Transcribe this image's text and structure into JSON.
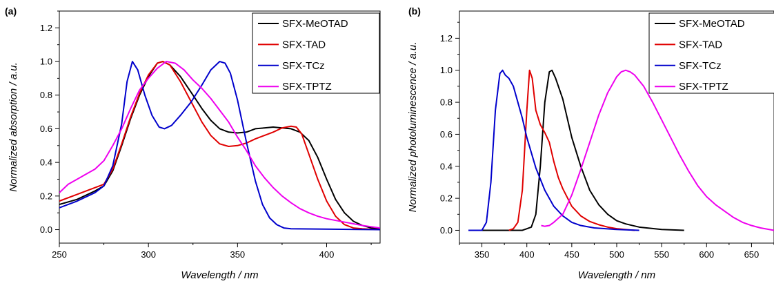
{
  "chart_data": [
    {
      "type": "line",
      "panel_label": "(a)",
      "xlabel": "Wavelength / nm",
      "ylabel": "Normalized absorption / a.u.",
      "xlim": [
        250,
        430
      ],
      "ylim": [
        -0.08,
        1.3
      ],
      "xticks": [
        250,
        300,
        350,
        400
      ],
      "yticks": [
        0.0,
        0.2,
        0.4,
        0.6,
        0.8,
        1.0,
        1.2
      ],
      "legend_position": "top-right",
      "grid": false,
      "series": [
        {
          "name": "SFX-MeOTAD",
          "color": "#000000",
          "points": [
            [
              250,
              0.15
            ],
            [
              260,
              0.18
            ],
            [
              270,
              0.23
            ],
            [
              275,
              0.26
            ],
            [
              280,
              0.35
            ],
            [
              285,
              0.5
            ],
            [
              290,
              0.66
            ],
            [
              295,
              0.8
            ],
            [
              300,
              0.91
            ],
            [
              305,
              0.99
            ],
            [
              308,
              1.0
            ],
            [
              312,
              0.98
            ],
            [
              318,
              0.91
            ],
            [
              325,
              0.8
            ],
            [
              330,
              0.72
            ],
            [
              335,
              0.65
            ],
            [
              340,
              0.6
            ],
            [
              345,
              0.58
            ],
            [
              350,
              0.575
            ],
            [
              355,
              0.58
            ],
            [
              360,
              0.6
            ],
            [
              365,
              0.605
            ],
            [
              370,
              0.61
            ],
            [
              375,
              0.605
            ],
            [
              380,
              0.6
            ],
            [
              385,
              0.58
            ],
            [
              390,
              0.53
            ],
            [
              395,
              0.43
            ],
            [
              400,
              0.3
            ],
            [
              405,
              0.18
            ],
            [
              410,
              0.1
            ],
            [
              415,
              0.05
            ],
            [
              420,
              0.025
            ],
            [
              425,
              0.01
            ],
            [
              430,
              0.005
            ]
          ]
        },
        {
          "name": "SFX-TAD",
          "color": "#e00000",
          "points": [
            [
              250,
              0.17
            ],
            [
              260,
              0.21
            ],
            [
              270,
              0.25
            ],
            [
              275,
              0.27
            ],
            [
              280,
              0.36
            ],
            [
              285,
              0.51
            ],
            [
              290,
              0.67
            ],
            [
              295,
              0.81
            ],
            [
              300,
              0.92
            ],
            [
              305,
              0.99
            ],
            [
              308,
              1.0
            ],
            [
              312,
              0.98
            ],
            [
              318,
              0.88
            ],
            [
              325,
              0.74
            ],
            [
              330,
              0.64
            ],
            [
              335,
              0.56
            ],
            [
              340,
              0.51
            ],
            [
              345,
              0.495
            ],
            [
              350,
              0.5
            ],
            [
              355,
              0.515
            ],
            [
              360,
              0.54
            ],
            [
              365,
              0.56
            ],
            [
              370,
              0.58
            ],
            [
              375,
              0.605
            ],
            [
              380,
              0.615
            ],
            [
              383,
              0.61
            ],
            [
              386,
              0.57
            ],
            [
              390,
              0.45
            ],
            [
              395,
              0.3
            ],
            [
              400,
              0.17
            ],
            [
              405,
              0.08
            ],
            [
              410,
              0.03
            ],
            [
              415,
              0.01
            ],
            [
              420,
              0.005
            ],
            [
              430,
              0.0
            ]
          ]
        },
        {
          "name": "SFX-TCz",
          "color": "#0000cc",
          "points": [
            [
              250,
              0.13
            ],
            [
              260,
              0.17
            ],
            [
              270,
              0.22
            ],
            [
              275,
              0.26
            ],
            [
              280,
              0.38
            ],
            [
              285,
              0.63
            ],
            [
              288,
              0.88
            ],
            [
              291,
              1.0
            ],
            [
              294,
              0.95
            ],
            [
              298,
              0.8
            ],
            [
              302,
              0.68
            ],
            [
              306,
              0.61
            ],
            [
              309,
              0.6
            ],
            [
              313,
              0.62
            ],
            [
              318,
              0.68
            ],
            [
              324,
              0.76
            ],
            [
              330,
              0.86
            ],
            [
              335,
              0.95
            ],
            [
              340,
              1.0
            ],
            [
              343,
              0.99
            ],
            [
              346,
              0.93
            ],
            [
              350,
              0.77
            ],
            [
              355,
              0.52
            ],
            [
              360,
              0.29
            ],
            [
              364,
              0.15
            ],
            [
              368,
              0.07
            ],
            [
              372,
              0.03
            ],
            [
              376,
              0.01
            ],
            [
              380,
              0.005
            ],
            [
              430,
              0.0
            ]
          ]
        },
        {
          "name": "SFX-TPTZ",
          "color": "#ee00ee",
          "points": [
            [
              250,
              0.22
            ],
            [
              255,
              0.27
            ],
            [
              260,
              0.3
            ],
            [
              265,
              0.33
            ],
            [
              270,
              0.36
            ],
            [
              275,
              0.41
            ],
            [
              280,
              0.5
            ],
            [
              285,
              0.6
            ],
            [
              290,
              0.72
            ],
            [
              295,
              0.83
            ],
            [
              300,
              0.9
            ],
            [
              305,
              0.96
            ],
            [
              310,
              1.0
            ],
            [
              315,
              0.99
            ],
            [
              320,
              0.95
            ],
            [
              325,
              0.89
            ],
            [
              330,
              0.84
            ],
            [
              335,
              0.78
            ],
            [
              340,
              0.71
            ],
            [
              345,
              0.64
            ],
            [
              350,
              0.55
            ],
            [
              355,
              0.47
            ],
            [
              360,
              0.38
            ],
            [
              365,
              0.31
            ],
            [
              370,
              0.25
            ],
            [
              375,
              0.2
            ],
            [
              380,
              0.16
            ],
            [
              385,
              0.125
            ],
            [
              390,
              0.1
            ],
            [
              395,
              0.08
            ],
            [
              400,
              0.065
            ],
            [
              410,
              0.045
            ],
            [
              420,
              0.025
            ],
            [
              430,
              0.01
            ]
          ]
        }
      ]
    },
    {
      "type": "line",
      "panel_label": "(b)",
      "xlabel": "Wavelength / nm",
      "ylabel": "Normalized photoluminescence / a.u.",
      "xlim": [
        325,
        675
      ],
      "ylim": [
        -0.08,
        1.37
      ],
      "xticks": [
        350,
        400,
        450,
        500,
        550,
        600,
        650
      ],
      "yticks": [
        0.0,
        0.2,
        0.4,
        0.6,
        0.8,
        1.0,
        1.2
      ],
      "legend_position": "top-right",
      "grid": false,
      "series": [
        {
          "name": "SFX-MeOTAD",
          "color": "#000000",
          "points": [
            [
              350,
              0.0
            ],
            [
              395,
              0.0
            ],
            [
              405,
              0.02
            ],
            [
              410,
              0.1
            ],
            [
              415,
              0.4
            ],
            [
              420,
              0.8
            ],
            [
              425,
              0.99
            ],
            [
              428,
              1.0
            ],
            [
              432,
              0.95
            ],
            [
              440,
              0.82
            ],
            [
              450,
              0.58
            ],
            [
              460,
              0.4
            ],
            [
              470,
              0.25
            ],
            [
              480,
              0.16
            ],
            [
              490,
              0.1
            ],
            [
              500,
              0.06
            ],
            [
              510,
              0.04
            ],
            [
              525,
              0.02
            ],
            [
              550,
              0.005
            ],
            [
              575,
              0.0
            ]
          ]
        },
        {
          "name": "SFX-TAD",
          "color": "#e00000",
          "points": [
            [
              380,
              0.0
            ],
            [
              385,
              0.01
            ],
            [
              390,
              0.05
            ],
            [
              395,
              0.25
            ],
            [
              400,
              0.75
            ],
            [
              403,
              1.0
            ],
            [
              406,
              0.95
            ],
            [
              410,
              0.75
            ],
            [
              415,
              0.66
            ],
            [
              420,
              0.61
            ],
            [
              425,
              0.55
            ],
            [
              430,
              0.43
            ],
            [
              435,
              0.33
            ],
            [
              440,
              0.26
            ],
            [
              450,
              0.15
            ],
            [
              460,
              0.09
            ],
            [
              470,
              0.055
            ],
            [
              480,
              0.035
            ],
            [
              490,
              0.02
            ],
            [
              500,
              0.01
            ],
            [
              520,
              0.0
            ]
          ]
        },
        {
          "name": "SFX-TCz",
          "color": "#0000cc",
          "points": [
            [
              335,
              0.0
            ],
            [
              350,
              0.0
            ],
            [
              355,
              0.05
            ],
            [
              360,
              0.3
            ],
            [
              365,
              0.75
            ],
            [
              370,
              0.98
            ],
            [
              373,
              1.0
            ],
            [
              376,
              0.97
            ],
            [
              380,
              0.95
            ],
            [
              385,
              0.9
            ],
            [
              390,
              0.8
            ],
            [
              395,
              0.7
            ],
            [
              400,
              0.58
            ],
            [
              410,
              0.39
            ],
            [
              420,
              0.25
            ],
            [
              430,
              0.15
            ],
            [
              440,
              0.09
            ],
            [
              450,
              0.05
            ],
            [
              460,
              0.03
            ],
            [
              475,
              0.015
            ],
            [
              500,
              0.005
            ],
            [
              525,
              0.0
            ]
          ]
        },
        {
          "name": "SFX-TPTZ",
          "color": "#ee00ee",
          "points": [
            [
              416,
              0.03
            ],
            [
              420,
              0.025
            ],
            [
              425,
              0.03
            ],
            [
              430,
              0.05
            ],
            [
              440,
              0.1
            ],
            [
              450,
              0.22
            ],
            [
              460,
              0.38
            ],
            [
              470,
              0.55
            ],
            [
              480,
              0.72
            ],
            [
              490,
              0.86
            ],
            [
              500,
              0.96
            ],
            [
              505,
              0.99
            ],
            [
              510,
              1.0
            ],
            [
              515,
              0.99
            ],
            [
              520,
              0.97
            ],
            [
              530,
              0.9
            ],
            [
              540,
              0.8
            ],
            [
              550,
              0.69
            ],
            [
              560,
              0.58
            ],
            [
              570,
              0.47
            ],
            [
              580,
              0.37
            ],
            [
              590,
              0.28
            ],
            [
              600,
              0.21
            ],
            [
              610,
              0.16
            ],
            [
              620,
              0.12
            ],
            [
              630,
              0.08
            ],
            [
              640,
              0.05
            ],
            [
              650,
              0.03
            ],
            [
              660,
              0.015
            ],
            [
              675,
              0.0
            ]
          ]
        }
      ]
    }
  ]
}
